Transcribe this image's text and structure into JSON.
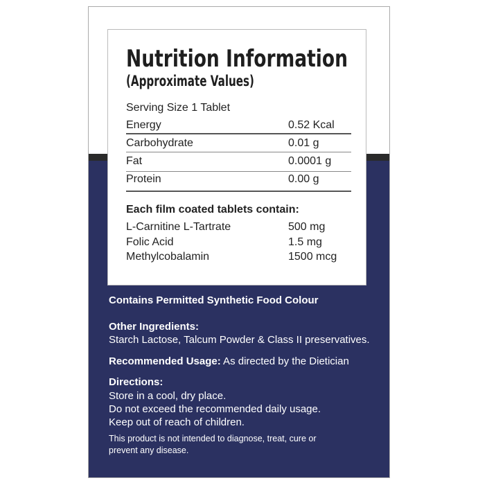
{
  "title": "Nutrition Information",
  "subtitle": "(Approximate Values)",
  "serving_size": "Serving Size 1 Tablet",
  "nutrients": [
    {
      "name": "Energy",
      "value": "0.52 Kcal"
    },
    {
      "name": "Carbohydrate",
      "value": "0.01 g"
    },
    {
      "name": "Fat",
      "value": "0.0001 g"
    },
    {
      "name": "Protein",
      "value": "0.00 g"
    }
  ],
  "composition_heading": "Each film coated tablets contain:",
  "composition": [
    {
      "name": "L-Carnitine L-Tartrate",
      "value": "500 mg"
    },
    {
      "name": "Folic Acid",
      "value": "1.5 mg"
    },
    {
      "name": "Methylcobalamin",
      "value": "1500 mcg"
    }
  ],
  "colour_note": "Contains Permitted Synthetic Food Colour",
  "other_ingredients": {
    "label": "Other Ingredients:",
    "text": "Starch Lactose, Talcum Powder & Class II preservatives."
  },
  "usage": {
    "label": "Recommended Usage:",
    "text": " As directed by the Dietician"
  },
  "directions": {
    "label": "Directions:",
    "lines": [
      "Store in a cool, dry place.",
      "Do not exceed the recommended daily usage.",
      "Keep out of reach of children."
    ]
  },
  "disclaimer": [
    "This product is not intended to diagnose, treat, cure or",
    "prevent any disease."
  ],
  "colors": {
    "navy": "#2b3161",
    "band": "#2a2a2a"
  }
}
